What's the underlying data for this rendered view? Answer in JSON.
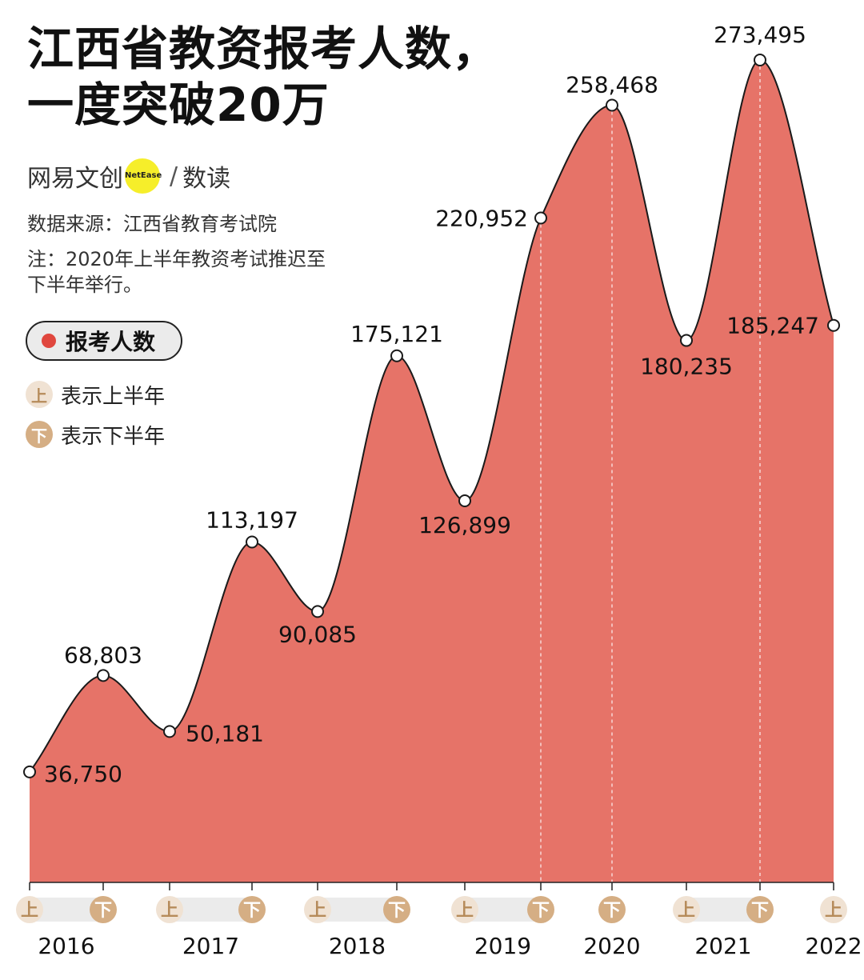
{
  "title": {
    "line1": "江西省教资报考人数，",
    "line2": "一度突破20万"
  },
  "brand": {
    "name": "网易文创",
    "logo_text": "NetEase",
    "slash": "/",
    "sub": "数读",
    "logo_color": "#f6ee2a"
  },
  "source": "数据来源：江西省教育考试院",
  "note": "注：2020年上半年教资考试推迟至下半年举行。",
  "legend": {
    "series_label": "报考人数",
    "first_half_marker": "上",
    "first_half_label": "表示上半年",
    "second_half_marker": "下",
    "second_half_label": "表示下半年"
  },
  "colors": {
    "area": "#e67368",
    "swatch": "#e0473e",
    "first_half_bg": "#f0e2d3",
    "first_half_text": "#b68b5a",
    "second_half_bg": "#d5ae84",
    "second_half_text": "#ffffff",
    "band": "#ebebeb"
  },
  "chart_data": {
    "type": "area",
    "series": [
      {
        "name": "报考人数",
        "points": [
          {
            "period": "上",
            "year": "2016",
            "value": 36750,
            "label": "36,750"
          },
          {
            "period": "下",
            "year": "2016",
            "value": 68803,
            "label": "68,803"
          },
          {
            "period": "上",
            "year": "2017",
            "value": 50181,
            "label": "50,181"
          },
          {
            "period": "下",
            "year": "2017",
            "value": 113197,
            "label": "113,197"
          },
          {
            "period": "上",
            "year": "2018",
            "value": 90085,
            "label": "90,085"
          },
          {
            "period": "下",
            "year": "2018",
            "value": 175121,
            "label": "175,121"
          },
          {
            "period": "上",
            "year": "2019",
            "value": 126899,
            "label": "126,899"
          },
          {
            "period": "下",
            "year": "2019",
            "value": 220952,
            "label": "220,952"
          },
          {
            "period": "下",
            "year": "2020",
            "value": 258468,
            "label": "258,468"
          },
          {
            "period": "上",
            "year": "2021",
            "value": 180235,
            "label": "180,235"
          },
          {
            "period": "下",
            "year": "2021",
            "value": 273495,
            "label": "273,495"
          },
          {
            "period": "上",
            "year": "2022",
            "value": 185247,
            "label": "185,247"
          }
        ]
      }
    ],
    "years": [
      "2016",
      "2017",
      "2018",
      "2019",
      "2020",
      "2021",
      "2022"
    ],
    "ylim": [
      0,
      300000
    ],
    "grid": false,
    "legend_position": "left"
  }
}
